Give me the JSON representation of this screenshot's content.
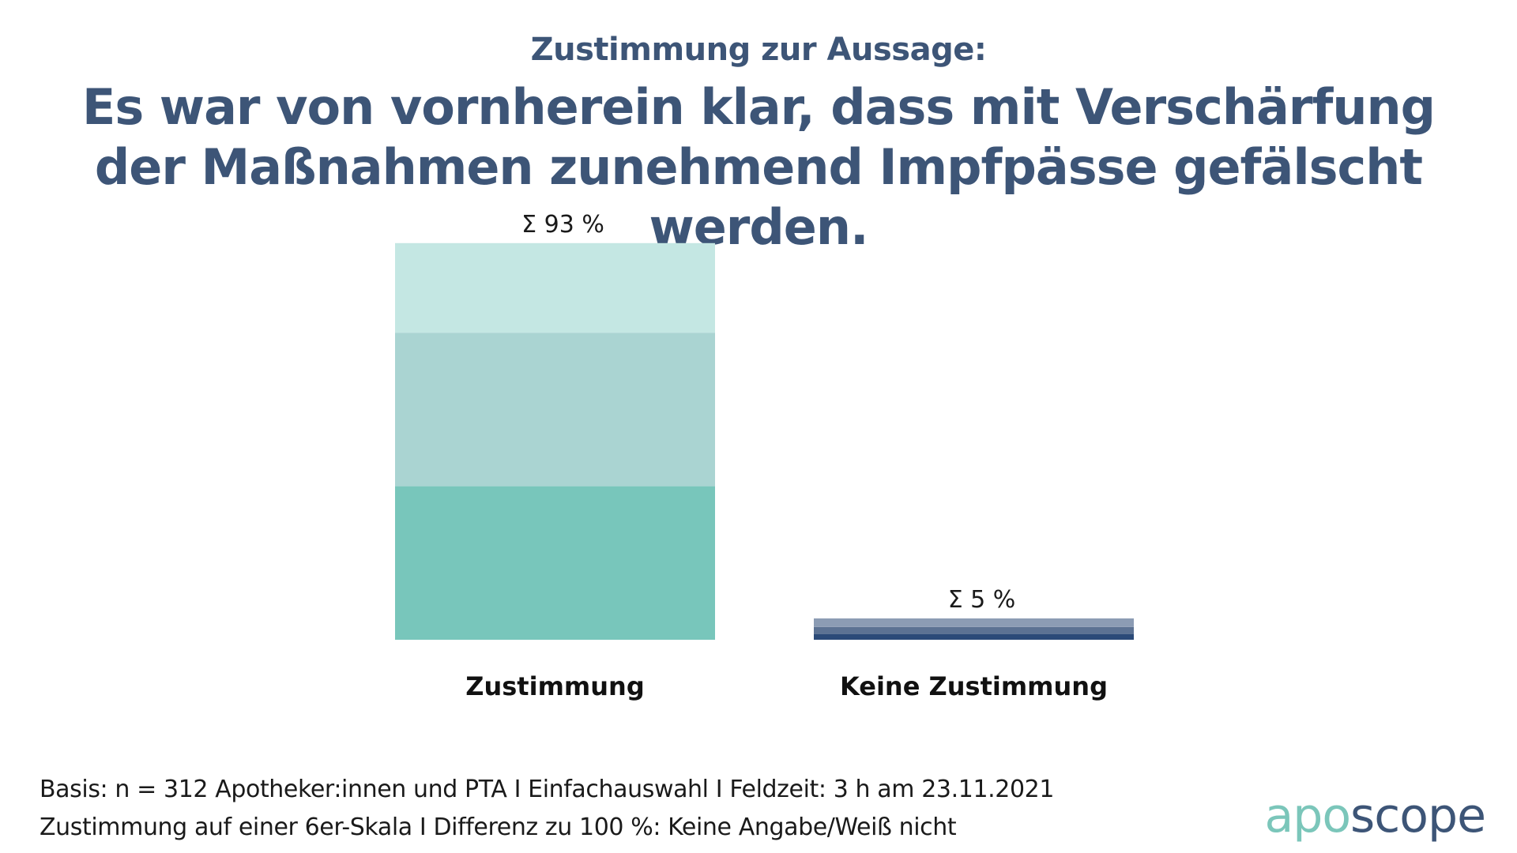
{
  "header": {
    "subtitle": "Zustimmung zur Aussage:",
    "title": "Es war von vornherein klar, dass mit Verschärfung der Maßnahmen zunehmend Impfpässe gefälscht werden."
  },
  "chart_data": {
    "type": "bar",
    "stacked": true,
    "title": "Es war von vornherein klar, dass mit Verschärfung der Maßnahmen zunehmend Impfpässe gefälscht werden.",
    "categories": [
      "Zustimmung",
      "Keine Zustimmung"
    ],
    "totals": [
      93,
      5
    ],
    "total_labels": [
      "Σ 93  %",
      "Σ 5  %"
    ],
    "ylim": [
      0,
      100
    ],
    "bars": [
      {
        "category": "Zustimmung",
        "segments": [
          {
            "value": 36,
            "color": "#78c6bb"
          },
          {
            "value": 36,
            "color": "#aad4d2"
          },
          {
            "value": 21,
            "color": "#c4e7e3"
          }
        ]
      },
      {
        "category": "Keine Zustimmung",
        "segments": [
          {
            "value": 1.3,
            "color": "#2b4a78"
          },
          {
            "value": 1.7,
            "color": "#5c7293"
          },
          {
            "value": 2,
            "color": "#8c9cb4"
          }
        ]
      }
    ],
    "xlabel": "",
    "ylabel": ""
  },
  "footer": {
    "line1": "Basis: n = 312 Apotheker:innen und PTA I Einfachauswahl I Feldzeit: 3 h am 23.11.2021",
    "line2": "Zustimmung auf einer 6er-Skala I Differenz zu 100 %: Keine Angabe/Weiß nicht"
  },
  "logo": {
    "part1": "apo",
    "part2": "scope"
  },
  "colors": {
    "title": "#3d5577",
    "accent": "#78c6bb"
  }
}
